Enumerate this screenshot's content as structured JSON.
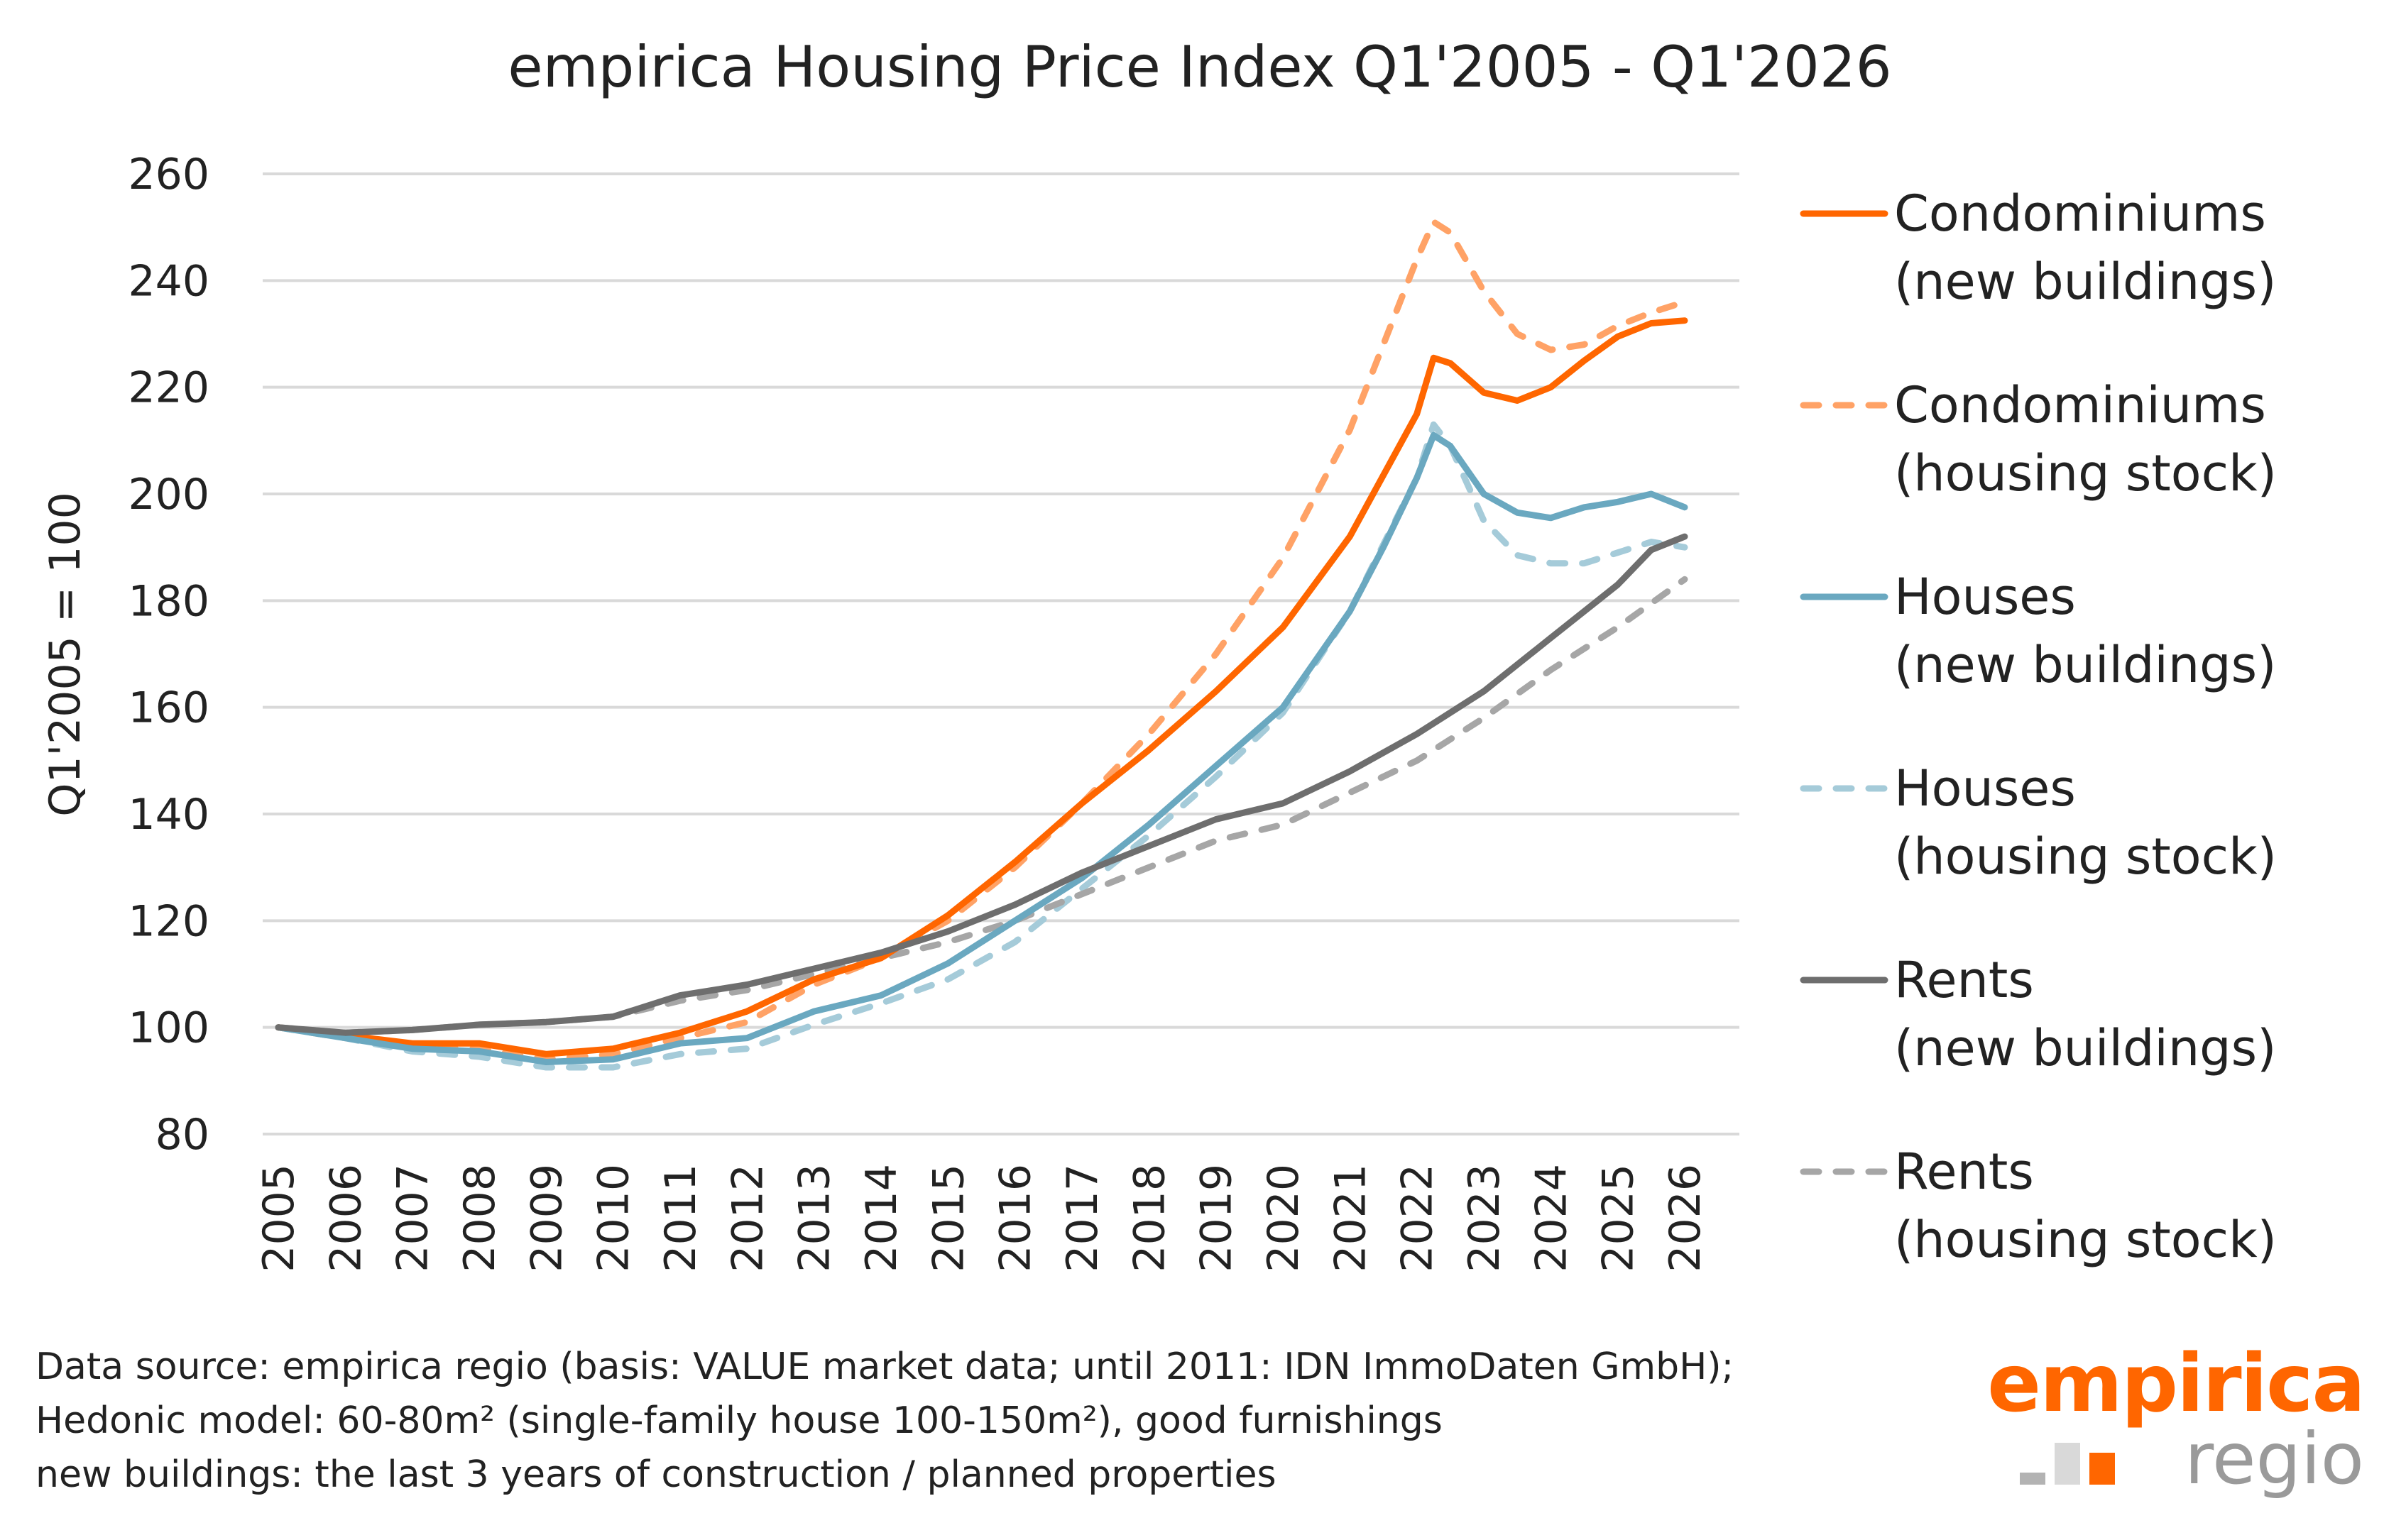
{
  "chart_data": {
    "type": "line",
    "title": "empirica Housing Price Index Q1'2005 - Q1'2026",
    "xlabel": "",
    "ylabel": "Q1'2005 = 100",
    "ylim": [
      80,
      260
    ],
    "yticks": [
      80,
      100,
      120,
      140,
      160,
      180,
      200,
      220,
      240,
      260
    ],
    "xlim": [
      2005,
      2026
    ],
    "xticks": [
      2005,
      2006,
      2007,
      2008,
      2009,
      2010,
      2011,
      2012,
      2013,
      2014,
      2015,
      2016,
      2017,
      2018,
      2019,
      2020,
      2021,
      2022,
      2023,
      2024,
      2025,
      2026
    ],
    "grid": true,
    "legend_position": "right",
    "series": [
      {
        "name": "Condominiums (new buildings)",
        "label_lines": [
          "Condominiums",
          "(new buildings)"
        ],
        "color": "#ff6600",
        "dash": false,
        "x": [
          2005,
          2006,
          2007,
          2008,
          2009,
          2010,
          2011,
          2012,
          2013,
          2014,
          2015,
          2016,
          2017,
          2018,
          2019,
          2020,
          2021,
          2022,
          2022.25,
          2022.5,
          2023,
          2023.5,
          2024,
          2024.5,
          2025,
          2025.5,
          2026
        ],
        "y": [
          100,
          98.5,
          97,
          97,
          95,
          96,
          99,
          103,
          109,
          113,
          121,
          131,
          142,
          152,
          163,
          175,
          192,
          215,
          225.5,
          224.5,
          219,
          217.5,
          220,
          225,
          229.5,
          232,
          232.5
        ]
      },
      {
        "name": "Condominiums (housing stock)",
        "label_lines": [
          "Condominiums",
          "(housing stock)"
        ],
        "color": "#ffa266",
        "dash": true,
        "x": [
          2005,
          2006,
          2007,
          2008,
          2009,
          2010,
          2011,
          2012,
          2013,
          2014,
          2015,
          2016,
          2017,
          2018,
          2019,
          2020,
          2021,
          2021.5,
          2022,
          2022.25,
          2022.5,
          2023,
          2023.5,
          2024,
          2024.5,
          2025,
          2025.5,
          2026
        ],
        "y": [
          100,
          98,
          96,
          96,
          94,
          95,
          98,
          101,
          108,
          113,
          120,
          130,
          142,
          155,
          170,
          188,
          212,
          228,
          244,
          251,
          249,
          238,
          230,
          227,
          228,
          231.5,
          234,
          236
        ]
      },
      {
        "name": "Houses (new buildings)",
        "label_lines": [
          "Houses",
          "(new buildings)"
        ],
        "color": "#6aa8c0",
        "dash": false,
        "x": [
          2005,
          2006,
          2007,
          2008,
          2009,
          2010,
          2011,
          2012,
          2013,
          2014,
          2015,
          2016,
          2017,
          2018,
          2019,
          2020,
          2021,
          2021.5,
          2022,
          2022.25,
          2022.5,
          2023,
          2023.5,
          2024,
          2024.5,
          2025,
          2025.5,
          2026
        ],
        "y": [
          100,
          98,
          96,
          95.5,
          93.5,
          94,
          97,
          98,
          103,
          106,
          112,
          120,
          128,
          138,
          149,
          160,
          178,
          190,
          203,
          211,
          209,
          200,
          196.5,
          195.5,
          197.5,
          198.5,
          200,
          197.5
        ]
      },
      {
        "name": "Houses (housing stock)",
        "label_lines": [
          "Houses",
          "(housing stock)"
        ],
        "color": "#a5cbd9",
        "dash": true,
        "x": [
          2005,
          2006,
          2007,
          2008,
          2009,
          2010,
          2011,
          2012,
          2013,
          2014,
          2015,
          2016,
          2017,
          2018,
          2019,
          2020,
          2021,
          2022,
          2022.25,
          2022.5,
          2023,
          2023.5,
          2024,
          2024.5,
          2025,
          2025.5,
          2026
        ],
        "y": [
          100,
          98,
          95.5,
          94.5,
          92.5,
          92.5,
          95,
          96,
          100.5,
          104.5,
          109,
          116,
          126,
          136,
          147,
          159,
          178,
          203,
          213,
          209,
          195,
          188.5,
          187,
          187,
          189,
          191,
          190
        ]
      },
      {
        "name": "Rents (new buildings)",
        "label_lines": [
          "Rents",
          "(new buildings)"
        ],
        "color": "#6e6e6e",
        "dash": false,
        "x": [
          2005,
          2006,
          2007,
          2008,
          2009,
          2010,
          2011,
          2012,
          2013,
          2014,
          2015,
          2016,
          2017,
          2018,
          2019,
          2020,
          2021,
          2022,
          2023,
          2024,
          2025,
          2025.5,
          2026
        ],
        "y": [
          100,
          99,
          99.5,
          100.5,
          101,
          102,
          106,
          108,
          111,
          114,
          118,
          123,
          129,
          134,
          139,
          142,
          148,
          155,
          163,
          173,
          183,
          189.5,
          192
        ]
      },
      {
        "name": "Rents (housing stock)",
        "label_lines": [
          "Rents",
          "(housing stock)"
        ],
        "color": "#a6a6a6",
        "dash": true,
        "x": [
          2005,
          2006,
          2007,
          2008,
          2009,
          2010,
          2011,
          2012,
          2013,
          2014,
          2015,
          2016,
          2017,
          2018,
          2019,
          2020,
          2021,
          2022,
          2023,
          2024,
          2025,
          2026
        ],
        "y": [
          100,
          99,
          99.5,
          100.5,
          101,
          102,
          105,
          107,
          110,
          113,
          116,
          120,
          125,
          130,
          135,
          138,
          144,
          150,
          158,
          167,
          175,
          184
        ]
      }
    ]
  },
  "footnote": {
    "lines": [
      "Data source: empirica regio (basis: VALUE market data; until 2011: IDN ImmoDaten GmbH);",
      "Hedonic model: 60-80m² (single-family house 100-150m²), good furnishings",
      "new buildings: the last 3 years of construction / planned properties"
    ]
  },
  "logo": {
    "top": "empirica",
    "bottom": "regio",
    "colors": [
      "#b3b3b3",
      "#d9d9d9",
      "#ff6600"
    ]
  }
}
